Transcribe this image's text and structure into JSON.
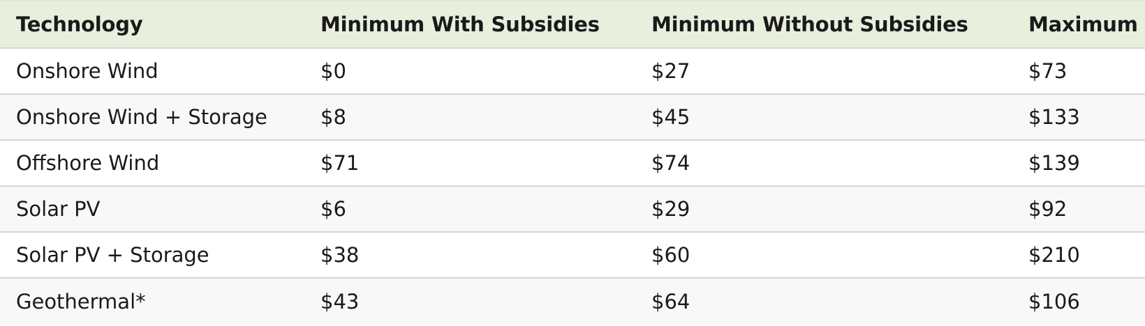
{
  "table": {
    "headers": [
      "Technology",
      "Minimum With Subsidies",
      "Minimum Without Subsidies",
      "Maximum"
    ],
    "rows": [
      [
        "Onshore Wind",
        "$0",
        "$27",
        "$73"
      ],
      [
        "Onshore Wind + Storage",
        "$8",
        "$45",
        "$133"
      ],
      [
        "Offshore Wind",
        "$71",
        "$74",
        "$139"
      ],
      [
        "Solar PV",
        "$6",
        "$29",
        "$92"
      ],
      [
        "Solar PV + Storage",
        "$38",
        "$60",
        "$210"
      ],
      [
        "Geothermal*",
        "$43",
        "$64",
        "$106"
      ]
    ]
  },
  "colors": {
    "header_background": "#e8efdd",
    "row_alt_background": "#f8f8f8",
    "row_border": "#d6d6d6",
    "text": "#1a1a1a"
  }
}
